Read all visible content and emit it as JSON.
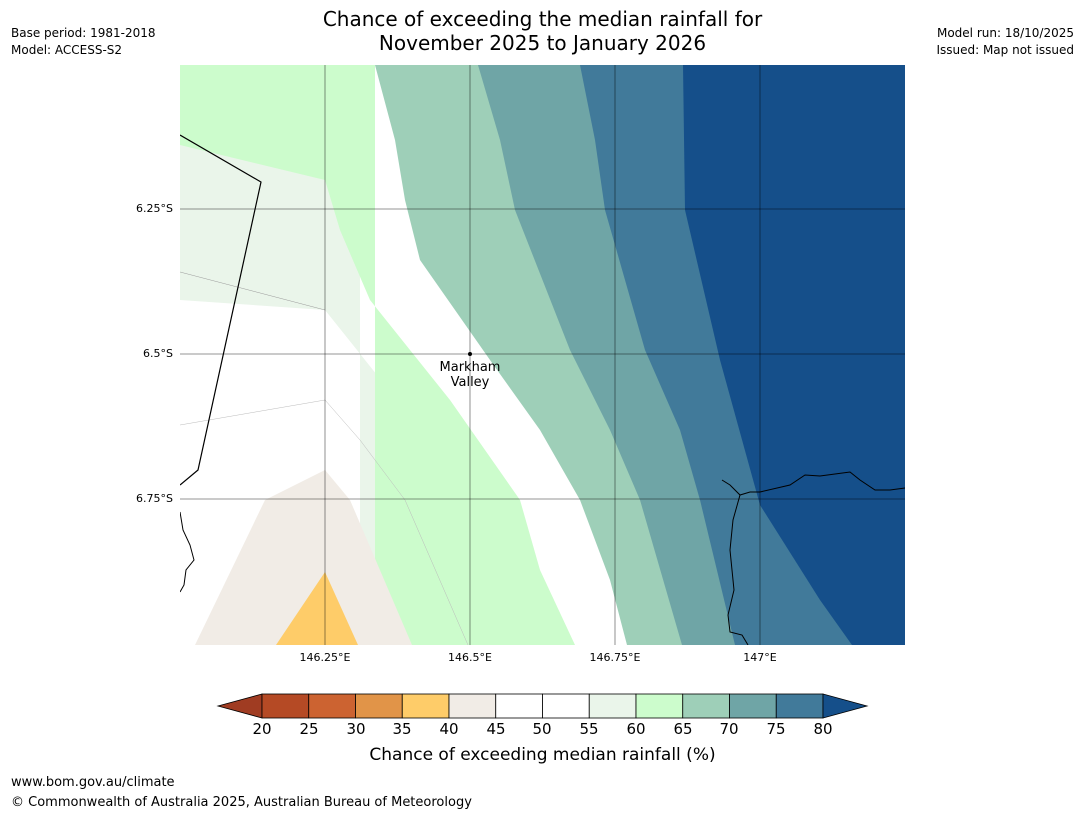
{
  "header": {
    "title_line1": "Chance of exceeding the median rainfall for",
    "title_line2": "November 2025 to January 2026",
    "base_period": "Base period: 1981-2018",
    "model": "Model: ACCESS-S2",
    "model_run": "Model run: 18/10/2025",
    "issued": "Issued: Map not issued"
  },
  "map": {
    "lat_labels": [
      "6.25°S",
      "6.5°S",
      "6.75°S"
    ],
    "lon_labels": [
      "146.25°E",
      "146.5°E",
      "146.75°E",
      "147°E"
    ],
    "place": {
      "name_line1": "Markham",
      "name_line2": "Valley"
    }
  },
  "colorbar": {
    "ticks": [
      "20",
      "25",
      "30",
      "35",
      "40",
      "45",
      "50",
      "55",
      "60",
      "65",
      "70",
      "75",
      "80"
    ],
    "label": "Chance of exceeding median rainfall (%)",
    "colors": [
      "#a03c22",
      "#b54a25",
      "#cc6331",
      "#e19448",
      "#fecc69",
      "#f1ece6",
      "#ffffff",
      "#ffffff",
      "#eaf5ea",
      "#ccfccc",
      "#9ecfb8",
      "#6fa5a6",
      "#417a9a",
      "#154f8a"
    ]
  },
  "footer": {
    "url": "www.bom.gov.au/climate",
    "copyright": "© Commonwealth of Australia 2025, Australian Bureau of Meteorology"
  }
}
